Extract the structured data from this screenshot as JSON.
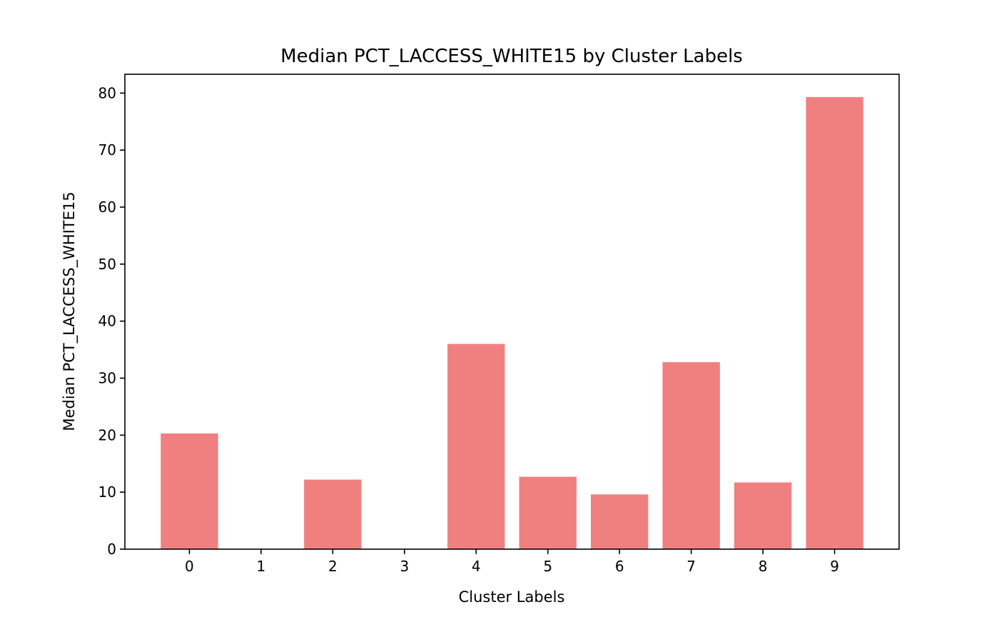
{
  "chart_data": {
    "type": "bar",
    "title": "Median PCT_LACCESS_WHITE15 by Cluster Labels",
    "xlabel": "Cluster Labels",
    "ylabel": "Median PCT_LACCESS_WHITE15",
    "categories": [
      "0",
      "1",
      "2",
      "3",
      "4",
      "5",
      "6",
      "7",
      "8",
      "9"
    ],
    "values": [
      20.3,
      0,
      12.2,
      0,
      36.0,
      12.7,
      9.6,
      32.8,
      11.7,
      79.3
    ],
    "ylim": [
      0,
      83.3
    ],
    "yticks": [
      0,
      10,
      20,
      30,
      40,
      50,
      60,
      70,
      80
    ],
    "grid": false,
    "bar_color": "#f08080"
  }
}
